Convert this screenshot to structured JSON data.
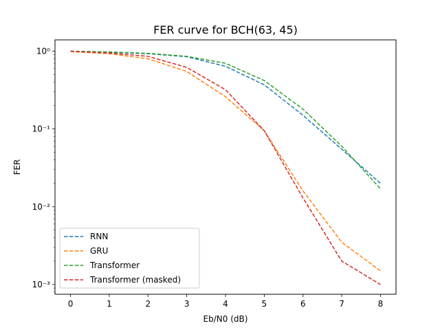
{
  "chart_data": {
    "type": "line",
    "title": "FER curve for BCH(63, 45)",
    "xlabel": "Eb/N0 (dB)",
    "ylabel": "FER",
    "yscale": "log",
    "xlim": [
      -0.4,
      8.4
    ],
    "ylim": [
      0.00075,
      1.4
    ],
    "x": [
      0,
      1,
      2,
      3,
      4,
      5,
      6,
      7,
      8
    ],
    "x_ticks": [
      0,
      1,
      2,
      3,
      4,
      5,
      6,
      7,
      8
    ],
    "x_tick_labels": [
      "0",
      "1",
      "2",
      "3",
      "4",
      "5",
      "6",
      "7",
      "8"
    ],
    "y_ticks": [
      1,
      0.1,
      0.01,
      0.001
    ],
    "y_tick_labels": [
      "10⁰",
      "10⁻¹",
      "10⁻²",
      "10⁻³"
    ],
    "grid": false,
    "legend_position": "lower-left",
    "line_style": "dashed",
    "series": [
      {
        "name": "RNN",
        "color": "#1f77b4",
        "values": [
          0.995,
          0.97,
          0.93,
          0.85,
          0.64,
          0.37,
          0.15,
          0.055,
          0.02
        ]
      },
      {
        "name": "GRU",
        "color": "#ff7f0e",
        "values": [
          0.99,
          0.93,
          0.8,
          0.55,
          0.26,
          0.095,
          0.016,
          0.0035,
          0.0015
        ]
      },
      {
        "name": "Transformer",
        "color": "#2ca02c",
        "values": [
          1.0,
          0.98,
          0.94,
          0.86,
          0.7,
          0.42,
          0.18,
          0.06,
          0.017
        ]
      },
      {
        "name": "Transformer (masked)",
        "color": "#d62728",
        "values": [
          1.0,
          0.95,
          0.86,
          0.62,
          0.32,
          0.095,
          0.013,
          0.002,
          0.001
        ]
      }
    ]
  }
}
